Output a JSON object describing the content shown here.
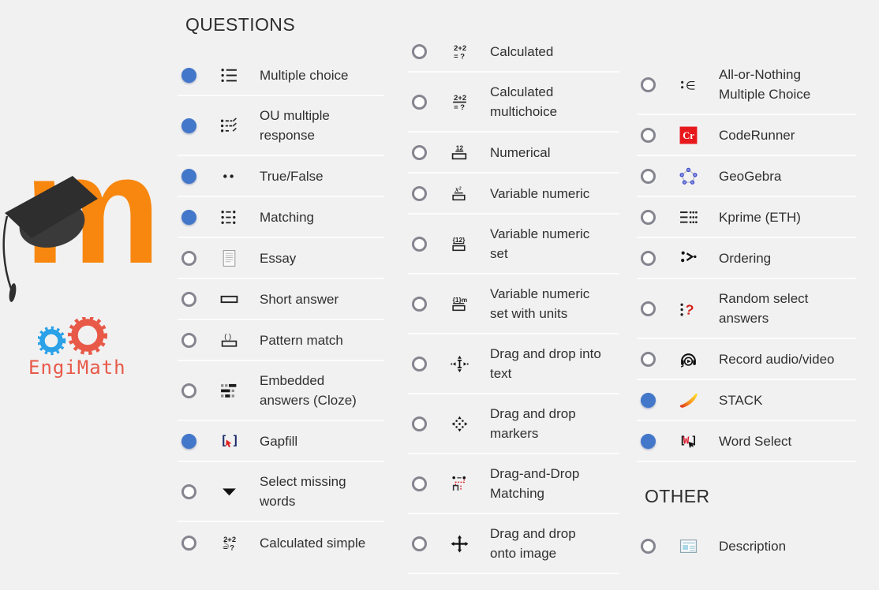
{
  "colors": {
    "background": "#f1f1f2",
    "radio_selected": "#4377c9",
    "moodle_orange": "#f8870f",
    "engimath_blue": "#2ba1e8",
    "engimath_red": "#e85948",
    "coderunner_red": "#e8191c"
  },
  "moodle_letter": "m",
  "engimath_label": "EngiMath",
  "columns": [
    {
      "sections": [
        {
          "header": "QUESTIONS",
          "items": [
            {
              "label": "Multiple choice",
              "icon": "multiple-choice-icon",
              "selected": true
            },
            {
              "label": "OU multiple response",
              "icon": "ou-multiple-response-icon",
              "selected": true
            },
            {
              "label": "True/False",
              "icon": "true-false-icon",
              "selected": true
            },
            {
              "label": "Matching",
              "icon": "matching-icon",
              "selected": true
            },
            {
              "label": "Essay",
              "icon": "essay-icon",
              "selected": false
            },
            {
              "label": "Short answer",
              "icon": "short-answer-icon",
              "selected": false
            },
            {
              "label": "Pattern match",
              "icon": "pattern-match-icon",
              "selected": false
            },
            {
              "label": "Embedded answers (Cloze)",
              "icon": "cloze-icon",
              "selected": false
            },
            {
              "label": "Gapfill",
              "icon": "gapfill-icon",
              "selected": true
            },
            {
              "label": "Select missing words",
              "icon": "select-missing-words-icon",
              "selected": false
            },
            {
              "label": "Calculated simple",
              "icon": "calculated-simple-icon",
              "selected": false
            }
          ]
        }
      ]
    },
    {
      "sections": [
        {
          "header": null,
          "items": [
            {
              "label": "Calculated",
              "icon": "calculated-icon",
              "selected": false
            },
            {
              "label": "Calculated multichoice",
              "icon": "calculated-multichoice-icon",
              "selected": false
            },
            {
              "label": "Numerical",
              "icon": "numerical-icon",
              "selected": false
            },
            {
              "label": "Variable numeric",
              "icon": "variable-numeric-icon",
              "selected": false
            },
            {
              "label": "Variable numeric set",
              "icon": "variable-numeric-set-icon",
              "selected": false
            },
            {
              "label": "Variable numeric set with units",
              "icon": "variable-numeric-set-units-icon",
              "selected": false
            },
            {
              "label": "Drag and drop into text",
              "icon": "drag-drop-text-icon",
              "selected": false
            },
            {
              "label": "Drag and drop markers",
              "icon": "drag-drop-markers-icon",
              "selected": false
            },
            {
              "label": "Drag-and-Drop Matching",
              "icon": "drag-drop-matching-icon",
              "selected": false
            },
            {
              "label": "Drag and drop onto image",
              "icon": "drag-drop-image-icon",
              "selected": false
            }
          ]
        }
      ]
    },
    {
      "sections": [
        {
          "header": null,
          "items": [
            {
              "label": "All-or-Nothing Multiple Choice",
              "icon": "all-or-nothing-icon",
              "selected": false
            },
            {
              "label": "CodeRunner",
              "icon": "coderunner-icon",
              "selected": false
            },
            {
              "label": "GeoGebra",
              "icon": "geogebra-icon",
              "selected": false
            },
            {
              "label": "Kprime (ETH)",
              "icon": "kprime-icon",
              "selected": false
            },
            {
              "label": "Ordering",
              "icon": "ordering-icon",
              "selected": false
            },
            {
              "label": "Random select answers",
              "icon": "random-select-icon",
              "selected": false
            },
            {
              "label": "Record audio/video",
              "icon": "record-av-icon",
              "selected": false
            },
            {
              "label": "STACK",
              "icon": "stack-icon",
              "selected": true
            },
            {
              "label": "Word Select",
              "icon": "word-select-icon",
              "selected": true
            }
          ]
        },
        {
          "header": "OTHER",
          "items": [
            {
              "label": "Description",
              "icon": "description-icon",
              "selected": false
            }
          ]
        }
      ]
    }
  ]
}
